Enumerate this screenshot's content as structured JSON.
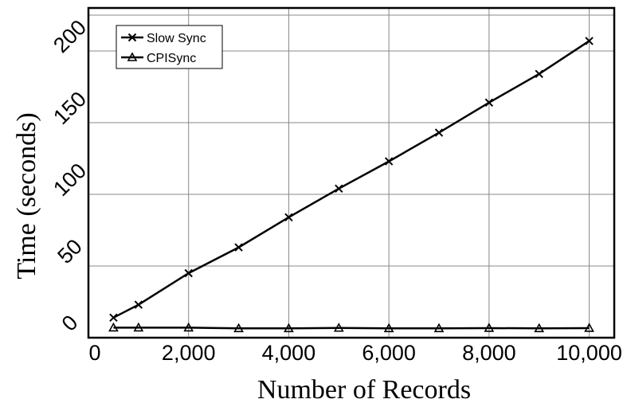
{
  "chart_data": {
    "type": "line",
    "xlabel": "Number of Records",
    "ylabel": "Time  (seconds)",
    "xlim": [
      0,
      10500
    ],
    "ylim": [
      0,
      230
    ],
    "xticks": [
      0,
      2000,
      4000,
      6000,
      8000,
      10000
    ],
    "xtick_labels": [
      "0",
      "2,000",
      "4,000",
      "6,000",
      "8,000",
      "10,000"
    ],
    "yticks": [
      0,
      50,
      100,
      150,
      200
    ],
    "ytick_labels": [
      "0",
      "50",
      "100",
      "150",
      "200"
    ],
    "grid": true,
    "legend_position": "top-left",
    "series": [
      {
        "name": "Slow Sync",
        "marker": "x",
        "x": [
          500,
          1000,
          2000,
          3000,
          4000,
          5000,
          6000,
          7000,
          8000,
          9000,
          10000
        ],
        "y": [
          14,
          23,
          45,
          63,
          84,
          104,
          123,
          143,
          164,
          184,
          207
        ]
      },
      {
        "name": "CPISync",
        "marker": "triangle",
        "x": [
          500,
          1000,
          2000,
          3000,
          4000,
          5000,
          6000,
          7000,
          8000,
          9000,
          10000
        ],
        "y": [
          7,
          7,
          7,
          6.5,
          6.5,
          6.8,
          6.5,
          6.5,
          6.7,
          6.5,
          6.7
        ]
      }
    ]
  }
}
